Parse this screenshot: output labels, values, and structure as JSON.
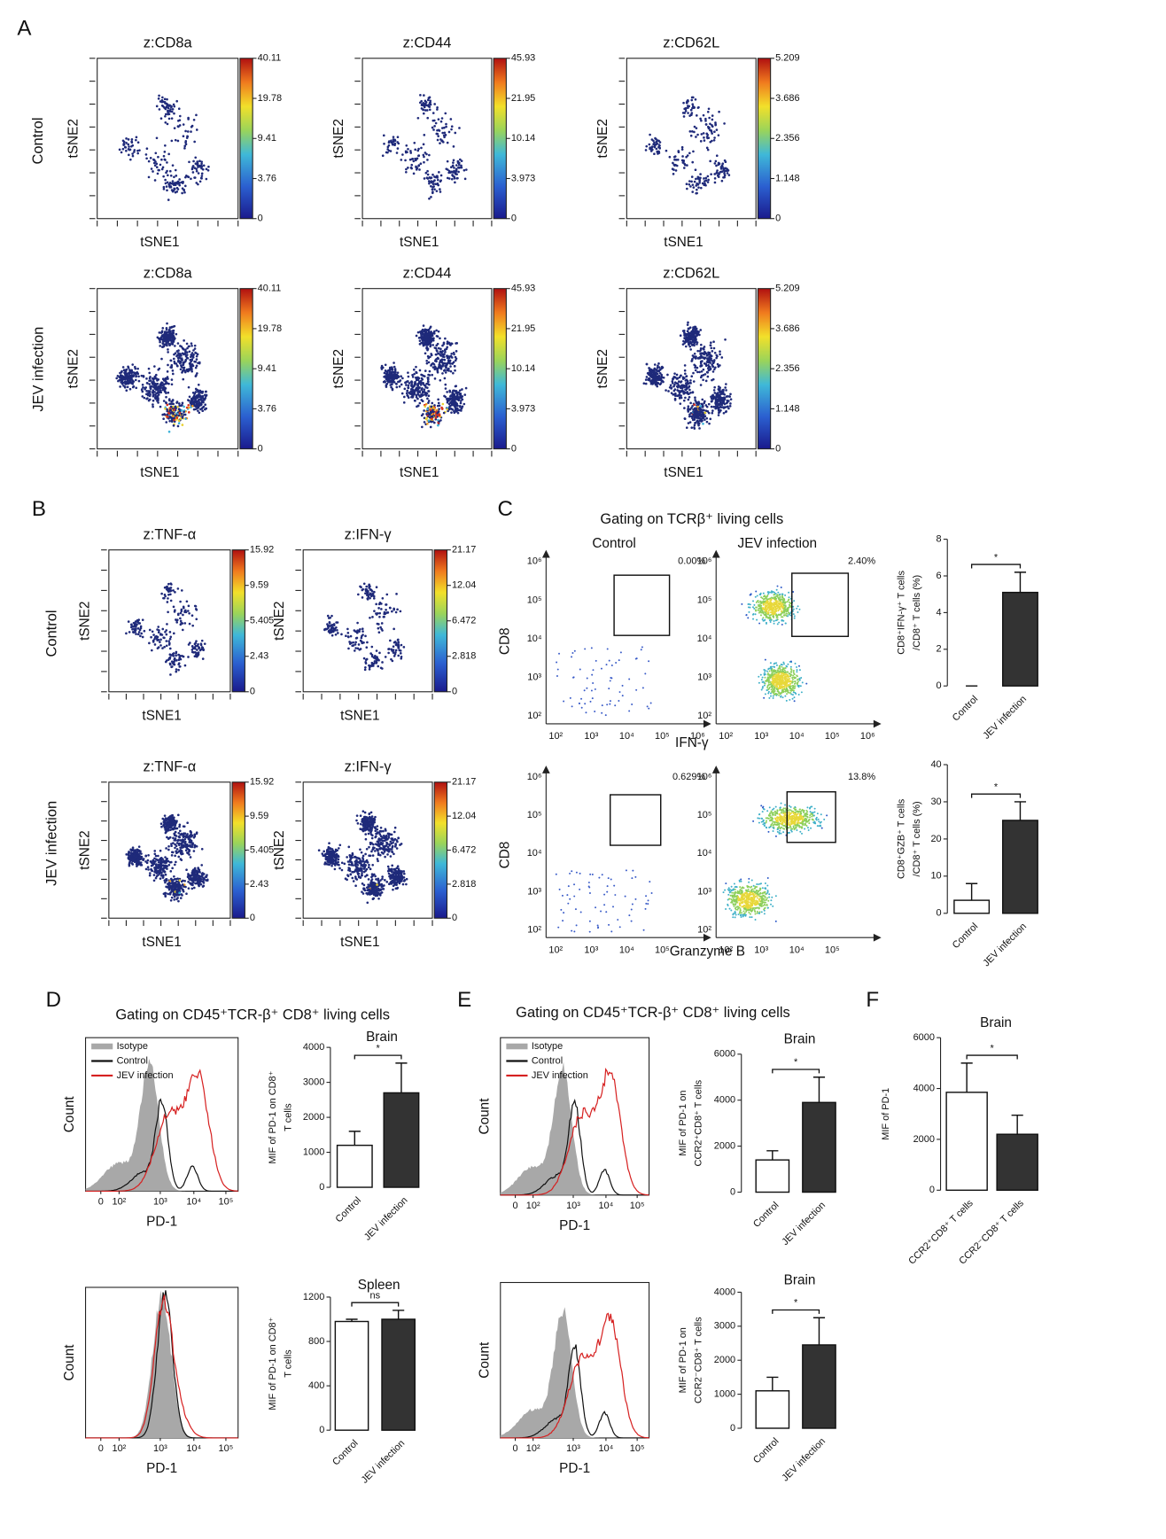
{
  "panel_labels": [
    "A",
    "B",
    "C",
    "D",
    "E",
    "F"
  ],
  "panel_a": {
    "rows": [
      "Control",
      "JEV infection"
    ],
    "x_label": "tSNE1",
    "y_label": "tSNE2",
    "markers": [
      {
        "title": "z:CD8a",
        "scale": [
          40.11,
          19.78,
          9.41,
          3.76,
          0
        ]
      },
      {
        "title": "z:CD44",
        "scale": [
          45.93,
          21.95,
          10.14,
          3.973,
          0
        ]
      },
      {
        "title": "z:CD62L",
        "scale": [
          5.209,
          3.686,
          2.356,
          1.148,
          0
        ]
      }
    ]
  },
  "panel_b": {
    "rows": [
      "Control",
      "JEV infection"
    ],
    "x_label": "tSNE1",
    "y_label": "tSNE2",
    "markers": [
      {
        "title": "z:TNF-α",
        "scale": [
          15.92,
          9.59,
          5.405,
          2.43,
          0
        ]
      },
      {
        "title": "z:IFN-γ",
        "scale": [
          21.17,
          12.04,
          6.472,
          2.818,
          0
        ]
      }
    ]
  },
  "panel_c": {
    "title": "Gating on TCRβ⁺ living cells",
    "groups": [
      "Control",
      "JEV infection"
    ],
    "y_label": "CD8",
    "axis_ticks": [
      "10²",
      "10³",
      "10⁴",
      "10⁵",
      "10⁶"
    ],
    "rows": [
      {
        "x_label": "IFN-γ",
        "gates": [
          "0.00%",
          "2.40%"
        ]
      },
      {
        "x_label": "Granzyme B",
        "gates": [
          "0.629%",
          "13.8%"
        ]
      }
    ]
  },
  "panel_d": {
    "title": "Gating on CD45⁺TCR-β⁺ CD8⁺ living cells",
    "legend": [
      "Isotype",
      "Control",
      "JEV infection"
    ],
    "x_label": "PD-1",
    "y_label": "Count",
    "x_ticks": [
      "0",
      "10²",
      "10³",
      "10⁴",
      "10⁵"
    ]
  },
  "panel_e": {
    "title": "Gating on CD45⁺TCR-β⁺ CD8⁺ living cells",
    "legend": [
      "Isotype",
      "Control",
      "JEV infection"
    ],
    "x_label": "PD-1",
    "y_label": "Count",
    "x_ticks": [
      "0",
      "10²",
      "10³",
      "10⁴",
      "10⁵"
    ]
  },
  "chart_data": [
    {
      "type": "bar",
      "ylabel": [
        "CD8⁺IFN-γ⁺ T cells",
        "/CD8⁺ T cells (%)"
      ],
      "categories": [
        "Control",
        "JEV infection"
      ],
      "values": [
        0,
        5.1
      ],
      "errors": [
        0,
        1.1
      ],
      "colors": [
        "#ffffff",
        "#333333"
      ],
      "ylim": [
        0,
        8
      ],
      "yticks": [
        0,
        2,
        4,
        6,
        8
      ],
      "annotation": "*"
    },
    {
      "type": "bar",
      "ylabel": [
        "CD8⁺GZB⁺ T cells",
        "/CD8⁺ T cells (%)"
      ],
      "categories": [
        "Control",
        "JEV infection"
      ],
      "values": [
        3.5,
        25
      ],
      "errors": [
        4.5,
        5
      ],
      "colors": [
        "#ffffff",
        "#333333"
      ],
      "ylim": [
        0,
        40
      ],
      "yticks": [
        0,
        10,
        20,
        30,
        40
      ],
      "annotation": "*"
    },
    {
      "type": "bar",
      "title": "Brain",
      "ylabel": [
        "MIF of PD-1 on CD8⁺",
        "T cells"
      ],
      "categories": [
        "Control",
        "JEV infection"
      ],
      "values": [
        1200,
        2700
      ],
      "errors": [
        400,
        850
      ],
      "colors": [
        "#ffffff",
        "#333333"
      ],
      "ylim": [
        0,
        4000
      ],
      "yticks": [
        0,
        1000,
        2000,
        3000,
        4000
      ],
      "annotation": "*"
    },
    {
      "type": "bar",
      "title": "Spleen",
      "ylabel": [
        "MIF of PD-1 on CD8⁺",
        "T cells"
      ],
      "categories": [
        "Control",
        "JEV infection"
      ],
      "values": [
        980,
        1000
      ],
      "errors": [
        20,
        80
      ],
      "colors": [
        "#ffffff",
        "#333333"
      ],
      "ylim": [
        0,
        1200
      ],
      "yticks": [
        0,
        400,
        800,
        1200
      ],
      "annotation": "ns"
    },
    {
      "type": "bar",
      "title": "Brain",
      "ylabel": [
        "MIF of PD-1 on",
        "CCR2⁺CD8⁺ T cells"
      ],
      "categories": [
        "Control",
        "JEV infection"
      ],
      "values": [
        1400,
        3900
      ],
      "errors": [
        400,
        1100
      ],
      "colors": [
        "#ffffff",
        "#333333"
      ],
      "ylim": [
        0,
        6000
      ],
      "yticks": [
        0,
        2000,
        4000,
        6000
      ],
      "annotation": "*"
    },
    {
      "type": "bar",
      "title": "Brain",
      "ylabel": [
        "MIF of PD-1 on",
        "CCR2⁻CD8⁺ T cells"
      ],
      "categories": [
        "Control",
        "JEV infection"
      ],
      "values": [
        1100,
        2450
      ],
      "errors": [
        400,
        800
      ],
      "colors": [
        "#ffffff",
        "#333333"
      ],
      "ylim": [
        0,
        4000
      ],
      "yticks": [
        0,
        1000,
        2000,
        3000,
        4000
      ],
      "annotation": "*"
    },
    {
      "type": "bar",
      "title": "Brain",
      "ylabel": [
        "MIF of PD-1"
      ],
      "categories": [
        "CCR2⁺CD8⁺ T cells",
        "CCR2⁻CD8⁺ T cells"
      ],
      "values": [
        3850,
        2200
      ],
      "errors": [
        1150,
        750
      ],
      "colors": [
        "#ffffff",
        "#333333"
      ],
      "ylim": [
        0,
        6000
      ],
      "yticks": [
        0,
        2000,
        4000,
        6000
      ],
      "annotation": "*"
    }
  ]
}
